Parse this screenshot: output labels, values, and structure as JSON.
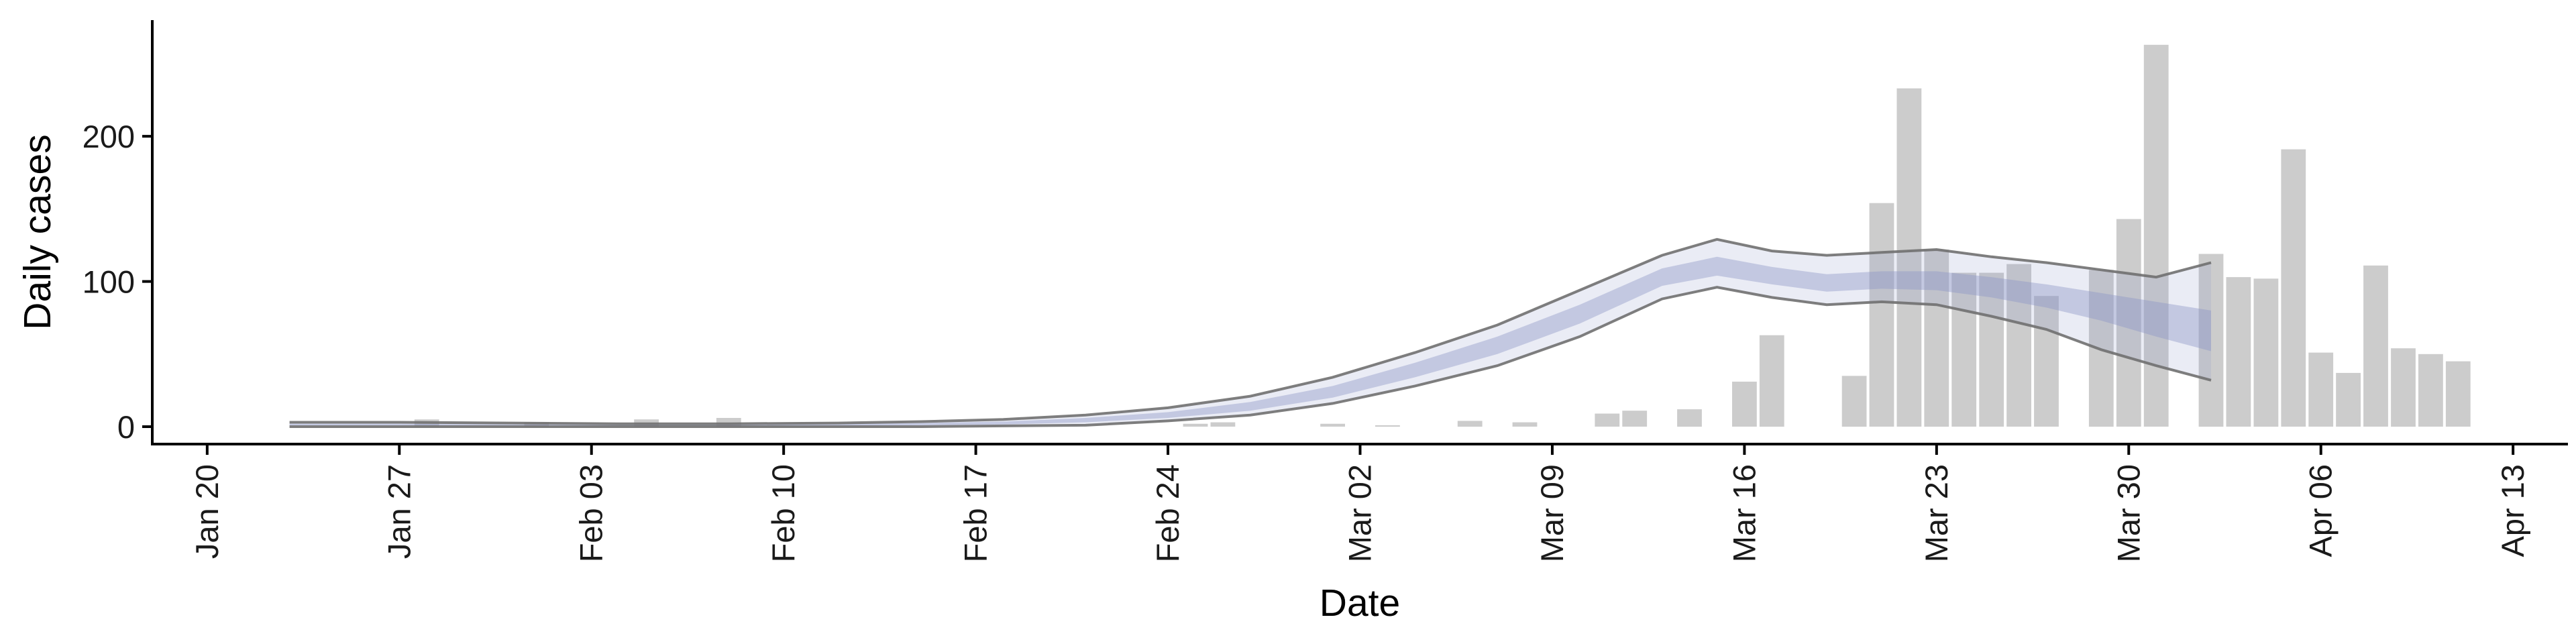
{
  "chart_data": {
    "type": "bar",
    "xlabel": "Date",
    "ylabel": "Daily cases",
    "x_range": [
      "2020-01-18",
      "2020-04-15"
    ],
    "ylim": [
      -12,
      280
    ],
    "grid": false,
    "legend": "none",
    "x_ticks": [
      {
        "date": "2020-01-20",
        "label": "Jan 20"
      },
      {
        "date": "2020-01-27",
        "label": "Jan 27"
      },
      {
        "date": "2020-02-03",
        "label": "Feb 03"
      },
      {
        "date": "2020-02-10",
        "label": "Feb 10"
      },
      {
        "date": "2020-02-17",
        "label": "Feb 17"
      },
      {
        "date": "2020-02-24",
        "label": "Feb 24"
      },
      {
        "date": "2020-03-02",
        "label": "Mar 02"
      },
      {
        "date": "2020-03-09",
        "label": "Mar 09"
      },
      {
        "date": "2020-03-16",
        "label": "Mar 16"
      },
      {
        "date": "2020-03-23",
        "label": "Mar 23"
      },
      {
        "date": "2020-03-30",
        "label": "Mar 30"
      },
      {
        "date": "2020-04-06",
        "label": "Apr 06"
      },
      {
        "date": "2020-04-13",
        "label": "Apr 13"
      }
    ],
    "y_ticks": [
      {
        "value": 0,
        "label": "0"
      },
      {
        "value": 100,
        "label": "100"
      },
      {
        "value": 200,
        "label": "200"
      }
    ],
    "cases": {
      "color": "#cccccc",
      "points": [
        {
          "x": "2020-01-28",
          "y": 5
        },
        {
          "x": "2020-02-01",
          "y": 3
        },
        {
          "x": "2020-02-05",
          "y": 5
        },
        {
          "x": "2020-02-08",
          "y": 6
        },
        {
          "x": "2020-02-25",
          "y": 2
        },
        {
          "x": "2020-02-26",
          "y": 3
        },
        {
          "x": "2020-03-01",
          "y": 2
        },
        {
          "x": "2020-03-03",
          "y": 1
        },
        {
          "x": "2020-03-06",
          "y": 4
        },
        {
          "x": "2020-03-08",
          "y": 3
        },
        {
          "x": "2020-03-11",
          "y": 9
        },
        {
          "x": "2020-03-12",
          "y": 11
        },
        {
          "x": "2020-03-14",
          "y": 12
        },
        {
          "x": "2020-03-16",
          "y": 31
        },
        {
          "x": "2020-03-17",
          "y": 63
        },
        {
          "x": "2020-03-20",
          "y": 35
        },
        {
          "x": "2020-03-21",
          "y": 154
        },
        {
          "x": "2020-03-22",
          "y": 233
        },
        {
          "x": "2020-03-23",
          "y": 122
        },
        {
          "x": "2020-03-24",
          "y": 106
        },
        {
          "x": "2020-03-25",
          "y": 106
        },
        {
          "x": "2020-03-26",
          "y": 112
        },
        {
          "x": "2020-03-27",
          "y": 90
        },
        {
          "x": "2020-03-29",
          "y": 108
        },
        {
          "x": "2020-03-30",
          "y": 143
        },
        {
          "x": "2020-03-31",
          "y": 263
        },
        {
          "x": "2020-04-02",
          "y": 119
        },
        {
          "x": "2020-04-03",
          "y": 103
        },
        {
          "x": "2020-04-04",
          "y": 102
        },
        {
          "x": "2020-04-05",
          "y": 191
        },
        {
          "x": "2020-04-06",
          "y": 51
        },
        {
          "x": "2020-04-07",
          "y": 37
        },
        {
          "x": "2020-04-08",
          "y": 111
        },
        {
          "x": "2020-04-09",
          "y": 54
        },
        {
          "x": "2020-04-10",
          "y": 50
        },
        {
          "x": "2020-04-11",
          "y": 45
        }
      ]
    },
    "estimate": {
      "band_color": "#8c96c6",
      "line_color": "#707070",
      "points": [
        {
          "x": "2020-01-23",
          "lo90": 0,
          "lo50": 1,
          "hi50": 2,
          "hi90": 3
        },
        {
          "x": "2020-01-27",
          "lo90": 0,
          "lo50": 1,
          "hi50": 2,
          "hi90": 3
        },
        {
          "x": "2020-01-31",
          "lo90": 0,
          "lo50": 0.5,
          "hi50": 1.5,
          "hi90": 2.5
        },
        {
          "x": "2020-02-04",
          "lo90": 0,
          "lo50": 0.5,
          "hi50": 1.5,
          "hi90": 2
        },
        {
          "x": "2020-02-08",
          "lo90": 0,
          "lo50": 0.5,
          "hi50": 1.5,
          "hi90": 2
        },
        {
          "x": "2020-02-12",
          "lo90": 0,
          "lo50": 0.5,
          "hi50": 2,
          "hi90": 2.5
        },
        {
          "x": "2020-02-15",
          "lo90": 0,
          "lo50": 1,
          "hi50": 2.5,
          "hi90": 3.5
        },
        {
          "x": "2020-02-18",
          "lo90": 0.5,
          "lo50": 1.5,
          "hi50": 3.5,
          "hi90": 5
        },
        {
          "x": "2020-02-21",
          "lo90": 1,
          "lo50": 3,
          "hi50": 6,
          "hi90": 8
        },
        {
          "x": "2020-02-24",
          "lo90": 4,
          "lo50": 6,
          "hi50": 10,
          "hi90": 13
        },
        {
          "x": "2020-02-27",
          "lo90": 8,
          "lo50": 11,
          "hi50": 17,
          "hi90": 21
        },
        {
          "x": "2020-03-01",
          "lo90": 16,
          "lo50": 20,
          "hi50": 28,
          "hi90": 34
        },
        {
          "x": "2020-03-04",
          "lo90": 28,
          "lo50": 34,
          "hi50": 44,
          "hi90": 51
        },
        {
          "x": "2020-03-07",
          "lo90": 42,
          "lo50": 50,
          "hi50": 62,
          "hi90": 70
        },
        {
          "x": "2020-03-10",
          "lo90": 62,
          "lo50": 71,
          "hi50": 84,
          "hi90": 94
        },
        {
          "x": "2020-03-13",
          "lo90": 88,
          "lo50": 97,
          "hi50": 109,
          "hi90": 118
        },
        {
          "x": "2020-03-15",
          "lo90": 96,
          "lo50": 104,
          "hi50": 117,
          "hi90": 129
        },
        {
          "x": "2020-03-17",
          "lo90": 89,
          "lo50": 98,
          "hi50": 110,
          "hi90": 121
        },
        {
          "x": "2020-03-19",
          "lo90": 84,
          "lo50": 93,
          "hi50": 105,
          "hi90": 118
        },
        {
          "x": "2020-03-21",
          "lo90": 86,
          "lo50": 95,
          "hi50": 107,
          "hi90": 120
        },
        {
          "x": "2020-03-23",
          "lo90": 84,
          "lo50": 94,
          "hi50": 107,
          "hi90": 122
        },
        {
          "x": "2020-03-25",
          "lo90": 76,
          "lo50": 89,
          "hi50": 103,
          "hi90": 117
        },
        {
          "x": "2020-03-27",
          "lo90": 67,
          "lo50": 82,
          "hi50": 98,
          "hi90": 113
        },
        {
          "x": "2020-03-29",
          "lo90": 53,
          "lo50": 73,
          "hi50": 92,
          "hi90": 108
        },
        {
          "x": "2020-03-31",
          "lo90": 42,
          "lo50": 62,
          "hi50": 86,
          "hi90": 103
        },
        {
          "x": "2020-04-02",
          "lo90": 32,
          "lo50": 52,
          "hi50": 80,
          "hi90": 113
        }
      ]
    }
  }
}
